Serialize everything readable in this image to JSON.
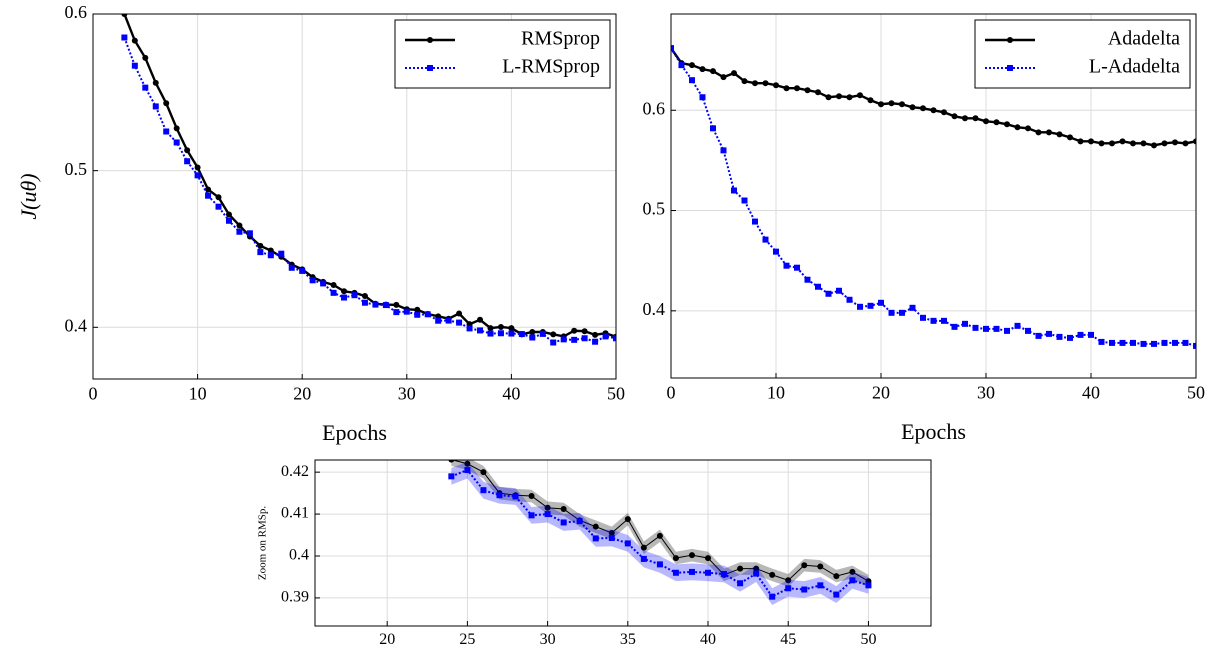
{
  "chart_data": [
    {
      "type": "line",
      "xlabel": "Epochs",
      "ylabel": "J(uθ)",
      "legend": "upper right",
      "grid": true,
      "x": [
        3,
        4,
        5,
        6,
        7,
        8,
        9,
        10,
        11,
        12,
        13,
        14,
        15,
        16,
        17,
        18,
        19,
        20,
        21,
        22,
        23,
        24,
        25,
        26,
        27,
        28,
        29,
        30,
        31,
        32,
        33,
        34,
        35,
        36,
        37,
        38,
        39,
        40,
        41,
        42,
        43,
        44,
        45,
        46,
        47,
        48,
        49,
        50
      ],
      "xlim": [
        0,
        50
      ],
      "xticks": [
        0,
        10,
        20,
        30,
        40,
        50
      ],
      "ylim": [
        0.367,
        0.6
      ],
      "yticks": [
        0.4,
        0.5,
        0.6
      ],
      "series": [
        {
          "name": "RMSprop",
          "color": "#000000",
          "marker": "circle",
          "linestyle": "solid",
          "values": [
            0.6,
            0.583,
            0.572,
            0.556,
            0.543,
            0.527,
            0.513,
            0.502,
            0.488,
            0.483,
            0.472,
            0.465,
            0.458,
            0.452,
            0.449,
            0.445,
            0.44,
            0.437,
            0.432,
            0.429,
            0.427,
            0.423,
            0.422,
            0.42,
            0.415,
            0.4145,
            0.4143,
            0.4115,
            0.4112,
            0.4085,
            0.407,
            0.4055,
            0.4088,
            0.402,
            0.4048,
            0.3995,
            0.4002,
            0.3995,
            0.3955,
            0.397,
            0.397,
            0.3955,
            0.3942,
            0.3978,
            0.3975,
            0.3952,
            0.3962,
            0.394
          ]
        },
        {
          "name": "L-RMSprop",
          "color": "#0000ff",
          "marker": "square",
          "linestyle": "dotted",
          "values": [
            0.585,
            0.567,
            0.553,
            0.541,
            0.525,
            0.518,
            0.506,
            0.497,
            0.484,
            0.477,
            0.468,
            0.461,
            0.46,
            0.448,
            0.446,
            0.447,
            0.438,
            0.436,
            0.43,
            0.428,
            0.422,
            0.419,
            0.4205,
            0.4157,
            0.4145,
            0.4142,
            0.4097,
            0.41,
            0.408,
            0.4083,
            0.4042,
            0.4043,
            0.403,
            0.3993,
            0.398,
            0.396,
            0.3962,
            0.396,
            0.3957,
            0.3935,
            0.3958,
            0.3903,
            0.3923,
            0.392,
            0.393,
            0.3908,
            0.3942,
            0.393
          ]
        }
      ]
    },
    {
      "type": "line",
      "xlabel": "Epochs",
      "legend": "upper right",
      "grid": true,
      "x": [
        0,
        1,
        2,
        3,
        4,
        5,
        6,
        7,
        8,
        9,
        10,
        11,
        12,
        13,
        14,
        15,
        16,
        17,
        18,
        19,
        20,
        21,
        22,
        23,
        24,
        25,
        26,
        27,
        28,
        29,
        30,
        31,
        32,
        33,
        34,
        35,
        36,
        37,
        38,
        39,
        40,
        41,
        42,
        43,
        44,
        45,
        46,
        47,
        48,
        49,
        50
      ],
      "xlim": [
        0,
        50
      ],
      "xticks": [
        0,
        10,
        20,
        30,
        40,
        50
      ],
      "ylim": [
        0.333,
        0.696
      ],
      "yticks": [
        0.4,
        0.5,
        0.6
      ],
      "series": [
        {
          "name": "Adadelta",
          "color": "#000000",
          "marker": "circle",
          "linestyle": "solid",
          "values": [
            0.662,
            0.647,
            0.645,
            0.641,
            0.639,
            0.633,
            0.637,
            0.629,
            0.627,
            0.627,
            0.625,
            0.622,
            0.622,
            0.62,
            0.618,
            0.613,
            0.614,
            0.613,
            0.615,
            0.61,
            0.606,
            0.607,
            0.606,
            0.603,
            0.602,
            0.6,
            0.598,
            0.594,
            0.592,
            0.592,
            0.589,
            0.588,
            0.586,
            0.583,
            0.582,
            0.578,
            0.578,
            0.576,
            0.573,
            0.569,
            0.569,
            0.567,
            0.567,
            0.569,
            0.567,
            0.567,
            0.565,
            0.567,
            0.568,
            0.567,
            0.569
          ]
        },
        {
          "name": "L-Adadelta",
          "color": "#0000ff",
          "marker": "square",
          "linestyle": "dotted",
          "values": [
            0.662,
            0.645,
            0.63,
            0.613,
            0.582,
            0.56,
            0.52,
            0.51,
            0.489,
            0.471,
            0.459,
            0.445,
            0.443,
            0.431,
            0.424,
            0.417,
            0.42,
            0.411,
            0.404,
            0.405,
            0.408,
            0.398,
            0.398,
            0.403,
            0.393,
            0.39,
            0.39,
            0.384,
            0.387,
            0.383,
            0.382,
            0.382,
            0.38,
            0.385,
            0.38,
            0.375,
            0.377,
            0.374,
            0.373,
            0.376,
            0.376,
            0.369,
            0.368,
            0.368,
            0.368,
            0.367,
            0.367,
            0.368,
            0.368,
            0.368,
            0.365
          ]
        }
      ]
    },
    {
      "type": "line",
      "ylabel": "Zoom on RMSp.",
      "grid": true,
      "x": [
        24,
        25,
        26,
        27,
        28,
        29,
        30,
        31,
        32,
        33,
        34,
        35,
        36,
        37,
        38,
        39,
        40,
        41,
        42,
        43,
        44,
        45,
        46,
        47,
        48,
        49,
        50
      ],
      "xlim": [
        15.5,
        53.9
      ],
      "xticks": [
        20,
        25,
        30,
        35,
        40,
        45,
        50
      ],
      "ylim": [
        0.3833,
        0.4229
      ],
      "yticks": [
        0.39,
        0.4,
        0.41,
        0.42
      ],
      "series": [
        {
          "color": "#000000",
          "marker": "circle",
          "linestyle": "thin",
          "error": 0.0015,
          "values": [
            0.423,
            0.422,
            0.42,
            0.415,
            0.4145,
            0.4143,
            0.4115,
            0.4112,
            0.4085,
            0.407,
            0.4055,
            0.4088,
            0.402,
            0.4048,
            0.3995,
            0.4002,
            0.3995,
            0.3955,
            0.397,
            0.397,
            0.3955,
            0.3942,
            0.3978,
            0.3975,
            0.3952,
            0.3962,
            0.394
          ]
        },
        {
          "color": "#0000ff",
          "marker": "square",
          "linestyle": "dotted",
          "error": 0.002,
          "values": [
            0.419,
            0.4205,
            0.4157,
            0.4145,
            0.4142,
            0.4097,
            0.41,
            0.408,
            0.4083,
            0.4042,
            0.4043,
            0.403,
            0.3993,
            0.398,
            0.396,
            0.3962,
            0.396,
            0.3957,
            0.3935,
            0.3958,
            0.3903,
            0.3923,
            0.392,
            0.393,
            0.3908,
            0.3942,
            0.393
          ]
        }
      ]
    }
  ]
}
